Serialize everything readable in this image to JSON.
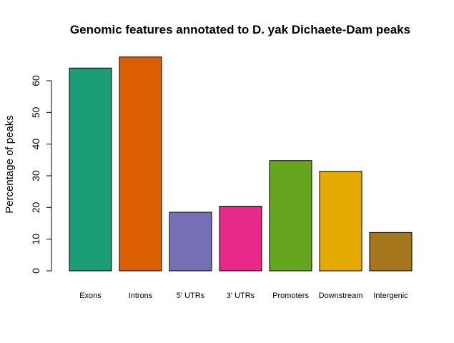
{
  "chart_data": {
    "type": "bar",
    "title": "Genomic features annotated to D. yak Dichaete-Dam peaks",
    "xlabel": "",
    "ylabel": "Percentage of peaks",
    "categories": [
      "Exons",
      "Introns",
      "5' UTRs",
      "3' UTRs",
      "Promoters",
      "Downstream",
      "Intergenic"
    ],
    "values": [
      64.0,
      67.5,
      18.5,
      20.4,
      34.8,
      31.4,
      12.1
    ],
    "colors": [
      "#1B9E77",
      "#D95F02",
      "#7570B3",
      "#E7298A",
      "#66A61E",
      "#E6AB02",
      "#A6761D"
    ],
    "ylim": [
      0,
      70
    ],
    "yticks": [
      0,
      10,
      20,
      30,
      40,
      50,
      60
    ],
    "grid": false,
    "legend": "none"
  }
}
